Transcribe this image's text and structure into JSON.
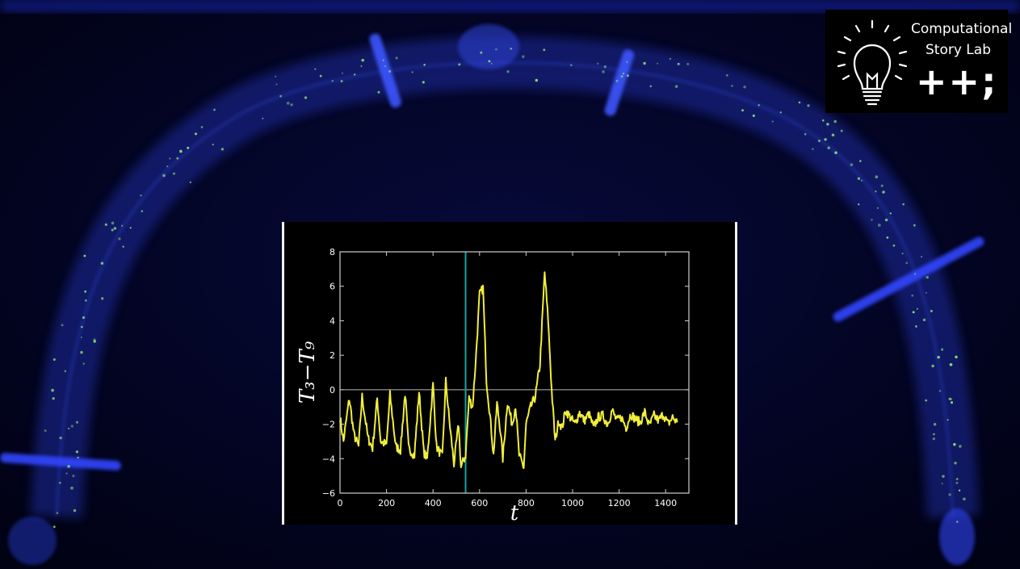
{
  "logo": {
    "line1": "Computational",
    "line2": "Story Lab",
    "line3": "++;",
    "icon": "lightbulb-icon"
  },
  "colors": {
    "background": "#020318",
    "glow": "#1d34e6",
    "particles": "#8fe37a",
    "trace": "#f2ef3a",
    "marker": "#12a3a3",
    "axes": "#cfcfcf"
  },
  "chart_data": {
    "type": "line",
    "title": "",
    "xlabel": "t",
    "ylabel": "T₃−T₉",
    "xlim": [
      0,
      1500
    ],
    "ylim": [
      -6,
      8
    ],
    "xticks": [
      "0",
      "200",
      "400",
      "600",
      "800",
      "1000",
      "1200",
      "1400"
    ],
    "yticks": [
      "−6",
      "−4",
      "−2",
      "0",
      "2",
      "4",
      "6",
      "8"
    ],
    "grid": false,
    "reference_line_y": 0,
    "marker_line_x": 540,
    "series": [
      {
        "x": [
          0,
          15,
          40,
          60,
          80,
          95,
          120,
          140,
          160,
          175,
          200,
          215,
          240,
          260,
          280,
          295,
          320,
          340,
          360,
          375,
          400,
          415,
          440,
          455,
          470,
          490,
          510,
          520,
          540,
          555,
          570,
          585,
          600,
          615,
          630,
          645,
          660,
          675,
          690,
          700,
          720,
          740,
          755,
          770,
          790,
          800,
          820,
          840,
          860,
          880,
          895,
          910,
          925,
          940,
          955,
          970,
          990,
          1010,
          1030,
          1050,
          1070,
          1090,
          1110,
          1130,
          1150,
          1170,
          1190,
          1210,
          1230,
          1250,
          1270,
          1290,
          1310,
          1330,
          1350,
          1370,
          1390,
          1410,
          1430,
          1450
        ],
        "y": [
          -1.6,
          -3.0,
          -0.5,
          -2.6,
          -3.3,
          -0.4,
          -2.8,
          -3.4,
          -0.5,
          -3.0,
          -3.2,
          -0.3,
          -3.3,
          -3.5,
          -0.2,
          -3.4,
          -3.8,
          -0.1,
          -3.6,
          -4.0,
          0.3,
          -3.3,
          -3.9,
          0.5,
          -1.8,
          -4.3,
          -2.0,
          -4.5,
          -3.8,
          -0.5,
          -1.0,
          2.0,
          5.5,
          5.9,
          0.5,
          -1.5,
          -3.8,
          -0.8,
          -2.4,
          -4.0,
          -0.7,
          -2.0,
          -0.9,
          -3.8,
          -4.5,
          -2.0,
          -1.0,
          -0.4,
          1.5,
          6.8,
          4.0,
          0.0,
          -3.0,
          -1.8,
          -2.2,
          -1.2,
          -1.6,
          -2.0,
          -1.3,
          -1.8,
          -1.4,
          -2.2,
          -1.6,
          -1.5,
          -2.0,
          -1.2,
          -1.8,
          -1.6,
          -2.2,
          -1.4,
          -1.7,
          -1.9,
          -1.3,
          -2.1,
          -1.5,
          -1.8,
          -1.4,
          -2.0,
          -1.6,
          -1.9
        ]
      }
    ]
  }
}
